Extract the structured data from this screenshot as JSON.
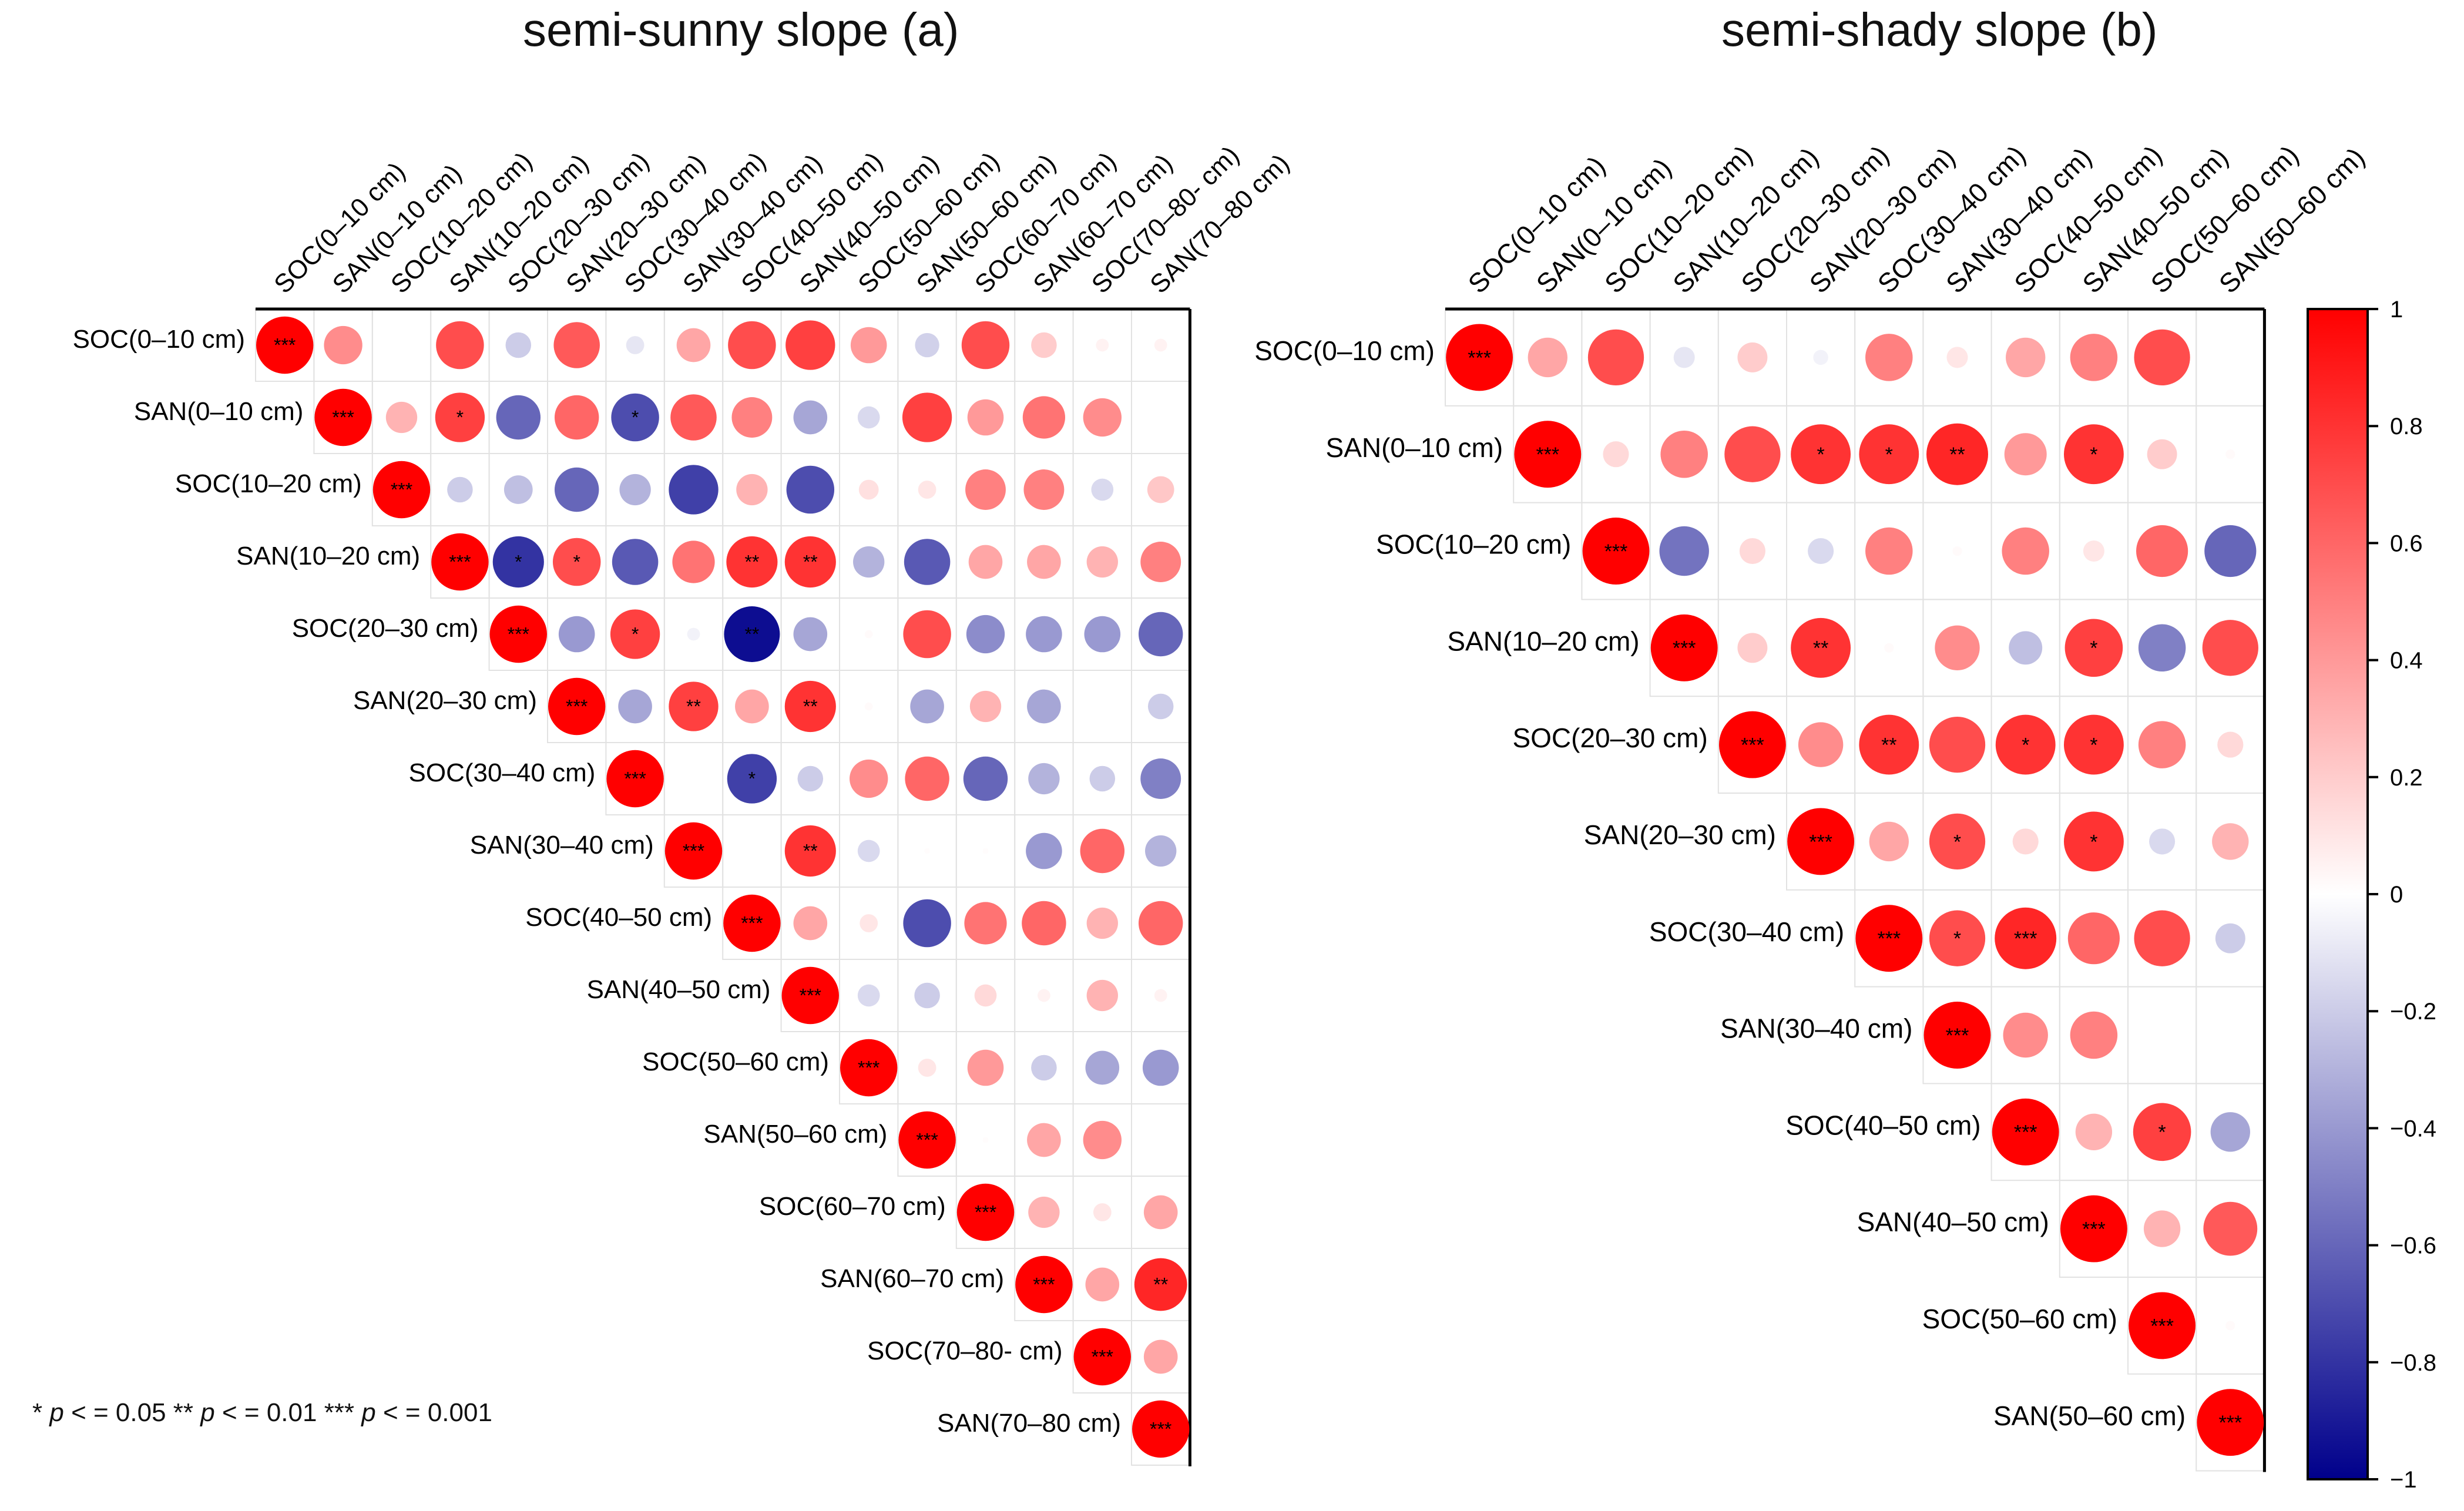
{
  "chart_data": [
    {
      "type": "correlation-matrix",
      "title": "semi-sunny slope (a)",
      "labels_left": [
        "SOC(0–10 cm)",
        "SAN(0–10 cm)",
        "SOC(10–20 cm)",
        "SAN(10–20 cm)",
        "SOC(20–30 cm)",
        "SAN(20–30 cm)",
        "SOC(30–40 cm)",
        "SAN(30–40 cm)",
        "SOC(40–50 cm)",
        "SAN(40–50 cm)",
        "SOC(50–60 cm)",
        "SAN(50–60 cm)",
        "SOC(60–70 cm)",
        "SAN(60–70 cm)",
        "SOC(70–80- cm)",
        "SAN(70–80 cm)"
      ],
      "labels_top": [
        "SOC(0–10 cm)",
        "SAN(0–10 cm)",
        "SOC(10–20 cm)",
        "SAN(10–20 cm)",
        "SOC(20–30 cm)",
        "SAN(20–30 cm)",
        "SOC(30–40 cm)",
        "SAN(30–40 cm)",
        "SOC(40–50 cm)",
        "SAN(40–50 cm)",
        "SOC(50–60 cm)",
        "SAN(50–60 cm)",
        "SOC(60–70 cm)",
        "SAN(60–70 cm)",
        "SOC(70–80- cm)",
        "SAN(70–80 cm)"
      ],
      "rows": [
        [
          1,
          0.45,
          0,
          0.7,
          -0.2,
          0.65,
          -0.1,
          0.35,
          0.7,
          0.75,
          0.4,
          -0.18,
          0.7,
          0.2,
          0.05,
          0.05
        ],
        [
          1,
          0.3,
          0.75,
          -0.6,
          0.6,
          -0.7,
          0.65,
          0.5,
          -0.35,
          -0.15,
          0.75,
          0.4,
          0.55,
          0.45
        ],
        [
          1,
          -0.2,
          -0.25,
          -0.6,
          -0.3,
          -0.75,
          0.3,
          -0.7,
          0.12,
          0.1,
          0.5,
          0.5,
          -0.15,
          0.22
        ],
        [
          1,
          -0.8,
          0.7,
          -0.65,
          0.55,
          0.8,
          0.8,
          -0.3,
          -0.65,
          0.35,
          0.35,
          0.3,
          0.5
        ],
        [
          1,
          -0.4,
          0.75,
          -0.05,
          -0.95,
          -0.35,
          0.02,
          0.7,
          -0.45,
          -0.4,
          -0.4,
          -0.6
        ],
        [
          1,
          -0.35,
          0.75,
          0.35,
          0.8,
          0.02,
          -0.35,
          0.3,
          -0.35,
          0,
          -0.2
        ],
        [
          1,
          0,
          -0.75,
          -0.2,
          0.45,
          0.6,
          -0.6,
          -0.3,
          -0.2,
          -0.5
        ],
        [
          1,
          0,
          0.8,
          -0.15,
          0.01,
          0.01,
          -0.4,
          0.6,
          -0.3
        ],
        [
          1,
          0.35,
          0.1,
          -0.7,
          0.55,
          0.6,
          0.3,
          0.6
        ],
        [
          1,
          -0.15,
          -0.2,
          0.15,
          0.05,
          0.3,
          0.05
        ],
        [
          1,
          0.1,
          0.4,
          -0.2,
          -0.35,
          -0.4
        ],
        [
          1,
          0.01,
          0.35,
          0.45,
          0
        ],
        [
          1,
          0.3,
          0.1,
          0.35
        ],
        [
          1,
          0.35,
          0.85
        ],
        [
          1,
          0.35
        ],
        [
          1
        ]
      ],
      "stars": [
        [
          "***",
          "",
          "",
          "",
          "",
          "",
          "",
          "",
          "",
          "",
          "",
          "",
          "",
          "",
          "",
          ""
        ],
        [
          "***",
          "",
          "*",
          "",
          "",
          "*",
          "",
          "",
          "",
          "",
          "",
          "",
          "",
          "",
          ""
        ],
        [
          "***",
          "",
          "",
          "",
          "",
          "",
          "",
          "",
          "",
          "",
          "",
          "",
          "",
          ""
        ],
        [
          "***",
          "*",
          "*",
          "",
          "",
          "**",
          "**",
          "",
          "",
          "",
          "",
          "",
          ""
        ],
        [
          "***",
          "",
          "*",
          "",
          "**",
          "",
          "",
          "",
          "",
          "",
          "",
          ""
        ],
        [
          "***",
          "",
          "**",
          "",
          "**",
          "",
          "",
          "",
          "",
          "",
          ""
        ],
        [
          "***",
          "",
          "*",
          "",
          "",
          "",
          "",
          "",
          "",
          ""
        ],
        [
          "***",
          "",
          "**",
          "",
          "",
          "",
          "",
          "",
          ""
        ],
        [
          "***",
          "",
          "",
          "",
          "",
          "",
          "",
          ""
        ],
        [
          "***",
          "",
          "",
          "",
          "",
          "",
          ""
        ],
        [
          "***",
          "",
          "",
          "",
          "",
          ""
        ],
        [
          "***",
          "",
          "",
          "",
          ""
        ],
        [
          "***",
          "",
          "",
          ""
        ],
        [
          "***",
          "",
          "**"
        ],
        [
          "***",
          ""
        ],
        [
          "***"
        ]
      ]
    },
    {
      "type": "correlation-matrix",
      "title": "semi-shady slope (b)",
      "labels_left": [
        "SOC(0–10 cm)",
        "SAN(0–10 cm)",
        "SOC(10–20 cm)",
        "SAN(10–20 cm)",
        "SOC(20–30 cm)",
        "SAN(20–30 cm)",
        "SOC(30–40 cm)",
        "SAN(30–40 cm)",
        "SOC(40–50 cm)",
        "SAN(40–50 cm)",
        "SOC(50–60 cm)",
        "SAN(50–60 cm)"
      ],
      "labels_top": [
        "SOC(0–10 cm)",
        "SAN(0–10 cm)",
        "SOC(10–20 cm)",
        "SAN(10–20 cm)",
        "SOC(20–30 cm)",
        "SAN(20–30 cm)",
        "SOC(30–40 cm)",
        "SAN(30–40 cm)",
        "SOC(40–50 cm)",
        "SAN(40–50 cm)",
        "SOC(50–60 cm)",
        "SAN(50–60 cm)"
      ],
      "rows": [
        [
          1,
          0.35,
          0.7,
          -0.1,
          0.2,
          -0.05,
          0.5,
          0.1,
          0.35,
          0.5,
          0.7,
          0
        ],
        [
          1,
          0.15,
          0.5,
          0.7,
          0.8,
          0.8,
          0.85,
          0.4,
          0.8,
          0.2,
          0.02
        ],
        [
          1,
          -0.55,
          0.15,
          -0.15,
          0.5,
          0.02,
          0.5,
          0.1,
          0.6,
          -0.6
        ],
        [
          1,
          0.2,
          0.8,
          0.02,
          0.45,
          -0.25,
          0.75,
          -0.5,
          0.7
        ],
        [
          1,
          0.45,
          0.8,
          0.7,
          0.8,
          0.8,
          0.5,
          0.15
        ],
        [
          1,
          0.35,
          0.7,
          0.15,
          0.8,
          -0.15,
          0.3
        ],
        [
          1,
          0.7,
          0.85,
          0.6,
          0.7,
          -0.2
        ],
        [
          1,
          0.45,
          0.5,
          0,
          0
        ],
        [
          1,
          0.3,
          0.75,
          -0.35
        ],
        [
          1,
          0.3,
          0.65
        ],
        [
          1,
          0.02
        ],
        [
          1
        ]
      ],
      "stars": [
        [
          "***",
          "",
          "",
          "",
          "",
          "",
          "",
          "",
          "",
          "",
          "",
          ""
        ],
        [
          "***",
          "",
          "",
          "",
          "*",
          "*",
          "**",
          "",
          "*",
          "",
          ""
        ],
        [
          "***",
          "",
          "",
          "",
          "",
          "",
          "",
          "",
          "",
          ""
        ],
        [
          "***",
          "",
          "**",
          "",
          "",
          "",
          "*",
          "",
          ""
        ],
        [
          "***",
          "",
          "**",
          "",
          "*",
          "*",
          "",
          ""
        ],
        [
          "***",
          "",
          "*",
          "",
          "*",
          "",
          ""
        ],
        [
          "***",
          "*",
          "***",
          "",
          "",
          ""
        ],
        [
          "***",
          "",
          "",
          "",
          ""
        ],
        [
          "***",
          "",
          "*",
          ""
        ],
        [
          "***",
          "",
          ""
        ],
        [
          "***",
          ""
        ],
        [
          "***"
        ]
      ]
    }
  ],
  "colorbar": {
    "ticks": [
      "1",
      "0.8",
      "0.6",
      "0.4",
      "0.2",
      "0",
      "−0.2",
      "−0.4",
      "−0.6",
      "−0.8",
      "−1"
    ],
    "color_high": "#ff0000",
    "color_mid": "#ffffff",
    "color_low": "#00008b"
  },
  "significance_note": {
    "p": "p",
    "t1_pre": "* ",
    "t1_post": " < = 0.05  ",
    "t2_pre": "** ",
    "t2_post": " < = 0.01  ",
    "t3_pre": "*** ",
    "t3_post": " < = 0.001"
  }
}
